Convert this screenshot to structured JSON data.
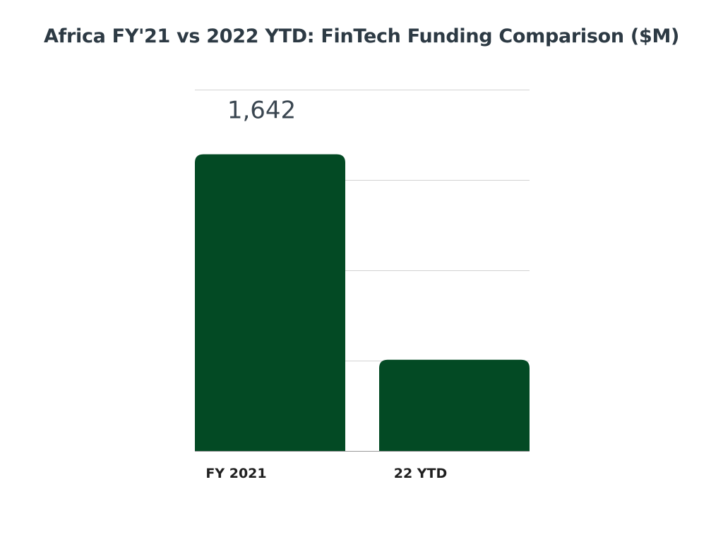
{
  "chart_data": {
    "type": "bar",
    "title": "Africa FY'21 vs 2022 YTD: FinTech Funding Comparison ($M)",
    "xlabel": "",
    "ylabel": "",
    "categories": [
      "FY 2021",
      "22 YTD"
    ],
    "values": [
      1642,
      505
    ],
    "data_labels": [
      "1,642",
      ""
    ],
    "ylim": [
      0,
      2000
    ],
    "y_gridlines": [
      0,
      500,
      1000,
      1500,
      2000
    ],
    "grid": true,
    "legend": "none",
    "bar_color": "#034a24"
  }
}
